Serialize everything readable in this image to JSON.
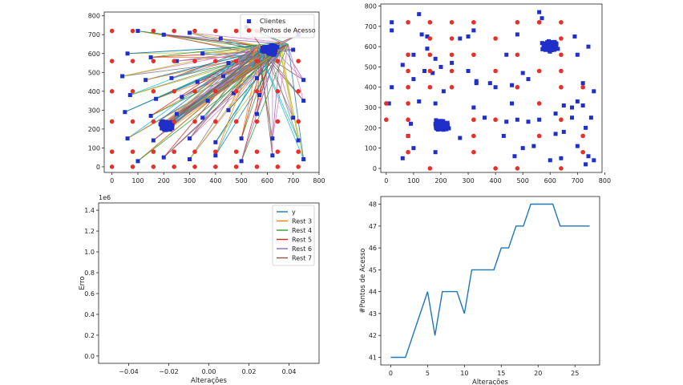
{
  "chart_data": [
    {
      "type": "scatter",
      "panel": "top-left",
      "xlim": [
        -30,
        800
      ],
      "ylim": [
        -30,
        820
      ],
      "x_ticks": [
        0,
        100,
        200,
        300,
        400,
        500,
        600,
        700,
        800
      ],
      "y_ticks": [
        0,
        100,
        200,
        300,
        400,
        500,
        600,
        700,
        800
      ],
      "x_tick_labels": [
        "0",
        "100",
        "200",
        "300",
        "400",
        "500",
        "600",
        "700",
        "800"
      ],
      "y_tick_labels": [
        "0",
        "100",
        "200",
        "300",
        "400",
        "500",
        "600",
        "700",
        "800"
      ],
      "legend": {
        "position": "top-right",
        "entries": [
          "Clientes",
          "Pontos de Acesso"
        ]
      },
      "clients": [
        [
          100,
          720
        ],
        [
          200,
          700
        ],
        [
          300,
          710
        ],
        [
          420,
          680
        ],
        [
          520,
          740
        ],
        [
          720,
          700
        ],
        [
          60,
          600
        ],
        [
          150,
          580
        ],
        [
          250,
          560
        ],
        [
          350,
          600
        ],
        [
          450,
          550
        ],
        [
          700,
          620
        ],
        [
          40,
          480
        ],
        [
          130,
          460
        ],
        [
          230,
          470
        ],
        [
          330,
          450
        ],
        [
          430,
          480
        ],
        [
          560,
          470
        ],
        [
          740,
          460
        ],
        [
          70,
          380
        ],
        [
          170,
          360
        ],
        [
          270,
          370
        ],
        [
          370,
          350
        ],
        [
          470,
          390
        ],
        [
          570,
          380
        ],
        [
          740,
          350
        ],
        [
          50,
          290
        ],
        [
          150,
          270
        ],
        [
          250,
          280
        ],
        [
          350,
          260
        ],
        [
          450,
          300
        ],
        [
          560,
          280
        ],
        [
          700,
          260
        ],
        [
          60,
          150
        ],
        [
          160,
          140
        ],
        [
          300,
          150
        ],
        [
          400,
          130
        ],
        [
          500,
          150
        ],
        [
          620,
          150
        ],
        [
          720,
          140
        ],
        [
          100,
          30
        ],
        [
          200,
          50
        ],
        [
          300,
          40
        ],
        [
          400,
          60
        ],
        [
          500,
          30
        ],
        [
          620,
          60
        ],
        [
          740,
          40
        ]
      ],
      "access_points": [
        [
          0,
          720
        ],
        [
          80,
          720
        ],
        [
          160,
          720
        ],
        [
          240,
          720
        ],
        [
          320,
          720
        ],
        [
          400,
          720
        ],
        [
          480,
          720
        ],
        [
          560,
          720
        ],
        [
          640,
          720
        ],
        [
          720,
          720
        ],
        [
          0,
          560
        ],
        [
          80,
          560
        ],
        [
          160,
          560
        ],
        [
          240,
          560
        ],
        [
          320,
          560
        ],
        [
          400,
          560
        ],
        [
          480,
          560
        ],
        [
          560,
          560
        ],
        [
          640,
          560
        ],
        [
          720,
          560
        ],
        [
          0,
          400
        ],
        [
          80,
          400
        ],
        [
          160,
          400
        ],
        [
          240,
          400
        ],
        [
          320,
          400
        ],
        [
          400,
          400
        ],
        [
          480,
          400
        ],
        [
          560,
          400
        ],
        [
          640,
          400
        ],
        [
          720,
          400
        ],
        [
          0,
          240
        ],
        [
          80,
          240
        ],
        [
          160,
          240
        ],
        [
          240,
          240
        ],
        [
          320,
          240
        ],
        [
          400,
          240
        ],
        [
          480,
          240
        ],
        [
          560,
          240
        ],
        [
          640,
          240
        ],
        [
          720,
          240
        ],
        [
          0,
          80
        ],
        [
          80,
          80
        ],
        [
          160,
          80
        ],
        [
          240,
          80
        ],
        [
          320,
          80
        ],
        [
          400,
          80
        ],
        [
          480,
          80
        ],
        [
          560,
          80
        ],
        [
          640,
          80
        ],
        [
          720,
          80
        ],
        [
          0,
          0
        ],
        [
          80,
          0
        ],
        [
          160,
          0
        ],
        [
          240,
          0
        ],
        [
          320,
          0
        ],
        [
          400,
          0
        ],
        [
          480,
          0
        ],
        [
          560,
          0
        ],
        [
          640,
          0
        ],
        [
          720,
          0
        ]
      ],
      "client_clusters": [
        {
          "center": [
            210,
            220
          ],
          "spread": 30
        },
        {
          "center": [
            610,
            620
          ],
          "spread": 35
        }
      ],
      "connection_targets": [
        [
          620,
          630
        ],
        [
          590,
          600
        ],
        [
          650,
          610
        ],
        [
          560,
          640
        ],
        [
          680,
          650
        ],
        [
          610,
          580
        ],
        [
          650,
          660
        ],
        [
          570,
          610
        ]
      ],
      "colors": {
        "clients": "#1f2fc8",
        "access_points": "#e8302a",
        "connections": [
          "#1f77b4",
          "#ff7f0e",
          "#2ca02c",
          "#d62728",
          "#9467bd",
          "#8c564b",
          "#e377c2",
          "#7f7f7f",
          "#bcbd22",
          "#17becf"
        ]
      }
    },
    {
      "type": "scatter",
      "panel": "top-right",
      "xlim": [
        -20,
        790
      ],
      "ylim": [
        -20,
        810
      ],
      "x_ticks": [
        0,
        100,
        200,
        300,
        400,
        500,
        600,
        700,
        800
      ],
      "y_ticks": [
        0,
        100,
        200,
        300,
        400,
        500,
        600,
        700,
        800
      ],
      "x_tick_labels": [
        "0",
        "100",
        "200",
        "300",
        "400",
        "500",
        "600",
        "700",
        "800"
      ],
      "y_tick_labels": [
        "0",
        "100",
        "200",
        "300",
        "400",
        "500",
        "600",
        "700",
        "800"
      ],
      "clients": [
        [
          20,
          720
        ],
        [
          20,
          680
        ],
        [
          120,
          760
        ],
        [
          130,
          660
        ],
        [
          150,
          650
        ],
        [
          150,
          590
        ],
        [
          100,
          560
        ],
        [
          180,
          540
        ],
        [
          60,
          510
        ],
        [
          140,
          480
        ],
        [
          100,
          440
        ],
        [
          170,
          470
        ],
        [
          200,
          500
        ],
        [
          240,
          520
        ],
        [
          300,
          650
        ],
        [
          320,
          680
        ],
        [
          270,
          640
        ],
        [
          300,
          480
        ],
        [
          330,
          420
        ],
        [
          380,
          420
        ],
        [
          440,
          560
        ],
        [
          460,
          410
        ],
        [
          500,
          470
        ],
        [
          520,
          440
        ],
        [
          480,
          660
        ],
        [
          560,
          770
        ],
        [
          570,
          740
        ],
        [
          690,
          650
        ],
        [
          700,
          560
        ],
        [
          740,
          600
        ],
        [
          720,
          420
        ],
        [
          760,
          380
        ],
        [
          700,
          330
        ],
        [
          720,
          310
        ],
        [
          750,
          250
        ],
        [
          680,
          250
        ],
        [
          650,
          180
        ],
        [
          620,
          170
        ],
        [
          700,
          110
        ],
        [
          760,
          40
        ],
        [
          740,
          60
        ],
        [
          730,
          20
        ],
        [
          640,
          50
        ],
        [
          600,
          40
        ],
        [
          540,
          110
        ],
        [
          500,
          100
        ],
        [
          470,
          60
        ],
        [
          430,
          160
        ],
        [
          460,
          320
        ],
        [
          400,
          400
        ],
        [
          360,
          250
        ],
        [
          320,
          300
        ],
        [
          330,
          430
        ],
        [
          210,
          380
        ],
        [
          180,
          320
        ],
        [
          120,
          330
        ],
        [
          90,
          220
        ],
        [
          80,
          160
        ],
        [
          100,
          100
        ],
        [
          60,
          50
        ],
        [
          20,
          400
        ],
        [
          10,
          320
        ],
        [
          180,
          80
        ],
        [
          270,
          150
        ],
        [
          440,
          230
        ],
        [
          480,
          240
        ],
        [
          520,
          230
        ],
        [
          560,
          240
        ],
        [
          620,
          270
        ],
        [
          650,
          310
        ],
        [
          680,
          300
        ],
        [
          730,
          200
        ]
      ],
      "access_points": [
        [
          0,
          320
        ],
        [
          0,
          240
        ],
        [
          80,
          720
        ],
        [
          80,
          560
        ],
        [
          80,
          480
        ],
        [
          80,
          400
        ],
        [
          80,
          240
        ],
        [
          80,
          160
        ],
        [
          80,
          80
        ],
        [
          80,
          320
        ],
        [
          160,
          720
        ],
        [
          160,
          640
        ],
        [
          160,
          560
        ],
        [
          160,
          480
        ],
        [
          160,
          400
        ],
        [
          240,
          720
        ],
        [
          240,
          640
        ],
        [
          240,
          560
        ],
        [
          240,
          480
        ],
        [
          240,
          400
        ],
        [
          160,
          0
        ],
        [
          320,
          720
        ],
        [
          400,
          640
        ],
        [
          320,
          560
        ],
        [
          400,
          480
        ],
        [
          400,
          0
        ],
        [
          480,
          720
        ],
        [
          480,
          560
        ],
        [
          480,
          400
        ],
        [
          480,
          0
        ],
        [
          560,
          720
        ],
        [
          560,
          480
        ],
        [
          560,
          320
        ],
        [
          640,
          720
        ],
        [
          640,
          640
        ],
        [
          640,
          560
        ],
        [
          640,
          480
        ],
        [
          640,
          400
        ],
        [
          640,
          240
        ],
        [
          640,
          0
        ],
        [
          720,
          400
        ],
        [
          720,
          160
        ],
        [
          320,
          240
        ],
        [
          400,
          240
        ],
        [
          320,
          160
        ],
        [
          320,
          80
        ],
        [
          560,
          160
        ],
        [
          720,
          80
        ]
      ],
      "client_clusters": [
        {
          "center": [
            200,
            210
          ],
          "spread": 35
        },
        {
          "center": [
            600,
            600
          ],
          "spread": 35
        }
      ],
      "colors": {
        "clients": "#1f2fc8",
        "access_points": "#e8302a"
      }
    },
    {
      "type": "line",
      "panel": "bottom-left",
      "xlim": [
        -0.055,
        0.055
      ],
      "ylim": [
        -0.07,
        1.47
      ],
      "x_ticks": [
        -0.04,
        -0.02,
        0.0,
        0.02,
        0.04
      ],
      "y_ticks": [
        0.0,
        0.2,
        0.4,
        0.6,
        0.8,
        1.0,
        1.2,
        1.4
      ],
      "x_tick_labels": [
        "−0.04",
        "−0.02",
        "0.00",
        "0.02",
        "0.04"
      ],
      "y_tick_labels": [
        "0.0",
        "0.2",
        "0.4",
        "0.6",
        "0.8",
        "1.0",
        "1.2",
        "1.4"
      ],
      "xlabel": "Alterações",
      "ylabel": "Erro",
      "offset_text": "1e6",
      "legend": {
        "position": "top-right",
        "entries": [
          "y",
          "Rest 3",
          "Rest 4",
          "Rest 5",
          "Rest 6",
          "Rest 7"
        ]
      },
      "series": [
        {
          "name": "y",
          "color": "#1f77b4",
          "x": [],
          "y": []
        },
        {
          "name": "Rest 3",
          "color": "#ff7f0e",
          "x": [],
          "y": []
        },
        {
          "name": "Rest 4",
          "color": "#2ca02c",
          "x": [],
          "y": []
        },
        {
          "name": "Rest 5",
          "color": "#d62728",
          "x": [],
          "y": []
        },
        {
          "name": "Rest 6",
          "color": "#9467bd",
          "x": [],
          "y": []
        },
        {
          "name": "Rest 7",
          "color": "#8c564b",
          "x": [],
          "y": []
        }
      ]
    },
    {
      "type": "line",
      "panel": "bottom-right",
      "xlim": [
        -1.35,
        28.35
      ],
      "ylim": [
        40.65,
        48.35
      ],
      "x_ticks": [
        0,
        5,
        10,
        15,
        20,
        25
      ],
      "y_ticks": [
        41,
        42,
        43,
        44,
        45,
        46,
        47,
        48
      ],
      "x_tick_labels": [
        "0",
        "5",
        "10",
        "15",
        "20",
        "25"
      ],
      "y_tick_labels": [
        "41",
        "42",
        "43",
        "44",
        "45",
        "46",
        "47",
        "48"
      ],
      "xlabel": "Alterações",
      "ylabel": "#Pontos de Acesso",
      "series": [
        {
          "color": "#1f77b4",
          "x": [
            0,
            1,
            2,
            3,
            4,
            5,
            6,
            7,
            8,
            9,
            10,
            11,
            12,
            13,
            14,
            15,
            16,
            17,
            18,
            19,
            20,
            21,
            22,
            23,
            24,
            25,
            26,
            27
          ],
          "y": [
            41,
            41,
            41,
            42,
            43,
            44,
            42,
            44,
            44,
            44,
            43,
            45,
            45,
            45,
            45,
            46,
            46,
            47,
            47,
            48,
            48,
            48,
            48,
            47,
            47,
            47,
            47,
            47
          ]
        }
      ]
    }
  ]
}
